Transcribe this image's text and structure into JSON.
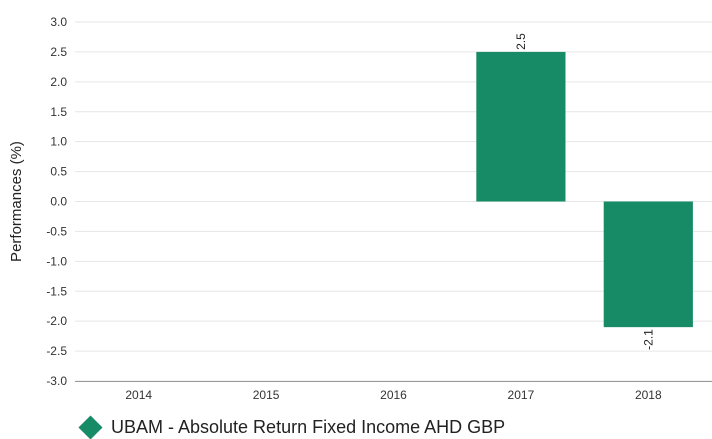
{
  "chart_data": {
    "type": "bar",
    "categories": [
      "2014",
      "2015",
      "2016",
      "2017",
      "2018"
    ],
    "series": [
      {
        "name": "UBAM - Absolute Return Fixed Income AHD GBP",
        "values": [
          null,
          null,
          null,
          2.5,
          -2.1
        ],
        "data_labels": [
          "",
          "",
          "",
          "2.5",
          "-2.1"
        ],
        "color": "#178A66"
      }
    ],
    "ylabel": "Performances (%)",
    "xlabel": "",
    "ylim": [
      -3.0,
      3.0
    ],
    "yticks": [
      "3.0",
      "2.5",
      "2.0",
      "1.5",
      "1.0",
      "0.5",
      "0.0",
      "-0.5",
      "-1.0",
      "-1.5",
      "-2.0",
      "-2.5",
      "-3.0"
    ],
    "grid": true,
    "legend_position": "bottom-left"
  }
}
